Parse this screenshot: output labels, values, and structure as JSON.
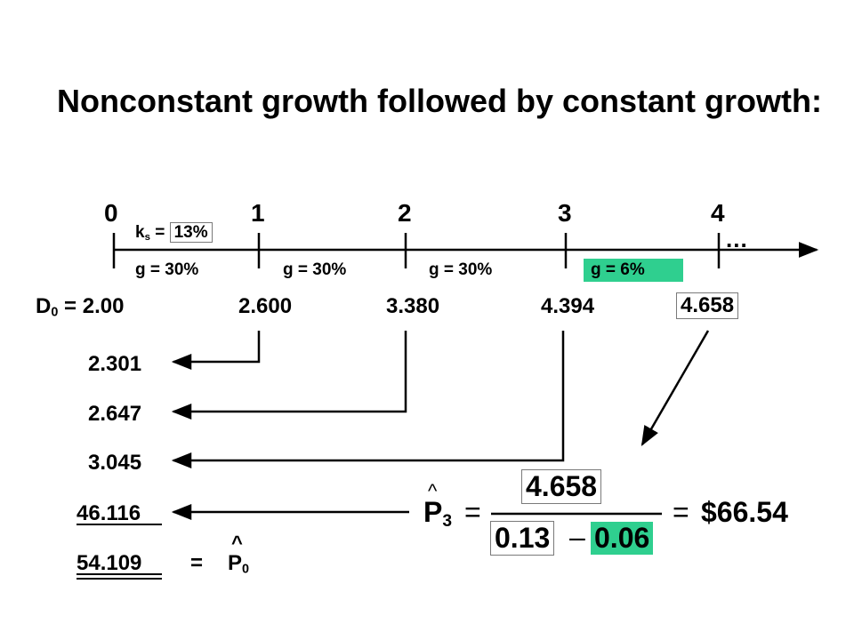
{
  "title": "Nonconstant growth followed by constant growth:",
  "timeline": {
    "periods": [
      "0",
      "1",
      "2",
      "3",
      "4"
    ],
    "ks_label": "k",
    "ks_sub": "s",
    "ks_eq": "=",
    "ks_value": "13%",
    "ellipsis": "...",
    "growth": [
      "g = 30%",
      "g = 30%",
      "g = 30%",
      "g = 6%"
    ]
  },
  "dividends": {
    "d0_label": "D",
    "d0_sub": "0",
    "d0_value": "= 2.00",
    "values": [
      "2.600",
      "3.380",
      "4.394",
      "4.658"
    ]
  },
  "present_values": [
    "2.301",
    "2.647",
    "3.045",
    "46.116"
  ],
  "total": {
    "value": "54.109",
    "eq": "=",
    "p_label": "P",
    "p_sub": "0",
    "hat": "^"
  },
  "formula": {
    "p_label": "P",
    "p_sub": "3",
    "hat": "^",
    "eq1": "=",
    "numerator": "4.658",
    "den_left": "0.13",
    "minus": "–",
    "den_right": "0.06",
    "eq2": "=",
    "result": "$66.54"
  },
  "colors": {
    "highlight_green": "#2fcf8f",
    "box_border": "#7a7a7a"
  }
}
